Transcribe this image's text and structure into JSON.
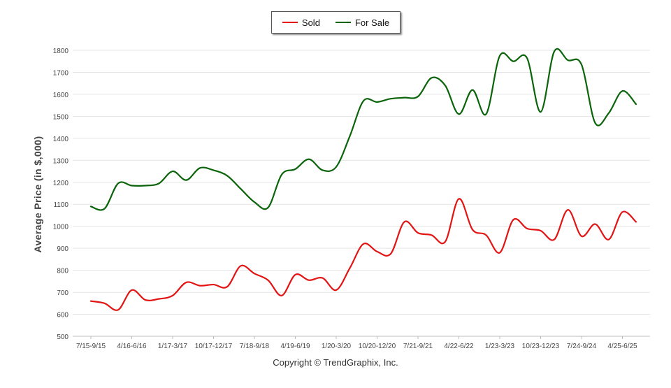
{
  "chart_data": {
    "type": "line",
    "ylabel": "Average Price (in $,000)",
    "ylim": [
      500,
      1800
    ],
    "yticks": [
      500,
      600,
      700,
      800,
      900,
      1000,
      1100,
      1200,
      1300,
      1400,
      1500,
      1600,
      1700,
      1800
    ],
    "grid": "horizontal",
    "legend_position": "top-center",
    "x_tick_labels": [
      "7/15-9/15",
      "4/16-6/16",
      "1/17-3/17",
      "10/17-12/17",
      "7/18-9/18",
      "4/19-6/19",
      "1/20-3/20",
      "10/20-12/20",
      "7/21-9/21",
      "4/22-6/22",
      "1/23-3/23",
      "10/23-12/23",
      "7/24-9/24",
      "4/25-6/25"
    ],
    "x_tick_positions": [
      0,
      3,
      6,
      9,
      12,
      15,
      18,
      21,
      24,
      27,
      30,
      33,
      36,
      39
    ],
    "n_points": 41,
    "series": [
      {
        "name": "Sold",
        "color": "#e31414",
        "values": [
          660,
          650,
          620,
          710,
          665,
          670,
          685,
          745,
          730,
          735,
          725,
          820,
          785,
          755,
          685,
          780,
          755,
          765,
          710,
          810,
          920,
          885,
          875,
          1020,
          970,
          960,
          930,
          1125,
          985,
          960,
          880,
          1030,
          990,
          980,
          940,
          1075,
          955,
          1010,
          940,
          1065,
          1020
        ]
      },
      {
        "name": "For Sale",
        "color": "#0a640a",
        "values": [
          1090,
          1080,
          1195,
          1185,
          1185,
          1195,
          1250,
          1210,
          1265,
          1255,
          1230,
          1170,
          1110,
          1085,
          1235,
          1260,
          1305,
          1255,
          1270,
          1410,
          1570,
          1565,
          1580,
          1585,
          1590,
          1675,
          1640,
          1510,
          1620,
          1510,
          1775,
          1750,
          1765,
          1520,
          1795,
          1755,
          1735,
          1470,
          1515,
          1615,
          1555
        ]
      }
    ]
  },
  "footer": {
    "copyright": "Copyright © TrendGraphix, Inc."
  }
}
